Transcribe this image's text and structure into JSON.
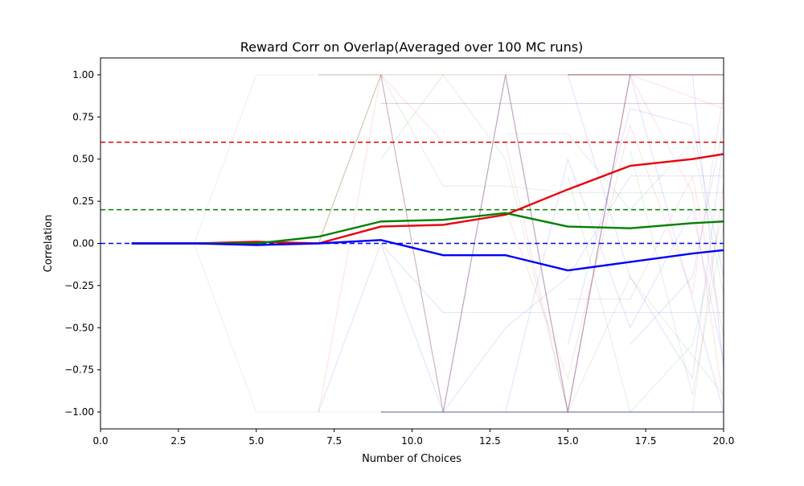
{
  "chart_data": {
    "type": "line",
    "title": "Reward Corr on Overlap(Averaged over 100 MC runs)",
    "xlabel": "Number of Choices",
    "ylabel": "Correlation",
    "xlim": [
      0,
      20
    ],
    "ylim": [
      -1.1,
      1.1
    ],
    "grid": false,
    "x_ticks": [
      0.0,
      2.5,
      5.0,
      7.5,
      10.0,
      12.5,
      15.0,
      17.5,
      20.0
    ],
    "x_tick_labels": [
      "0.0",
      "2.5",
      "5.0",
      "7.5",
      "10.0",
      "12.5",
      "15.0",
      "17.5",
      "20.0"
    ],
    "y_ticks": [
      -1.0,
      -0.75,
      -0.5,
      -0.25,
      0.0,
      0.25,
      0.5,
      0.75,
      1.0
    ],
    "y_tick_labels": [
      "−1.00",
      "−0.75",
      "−0.50",
      "−0.25",
      "0.00",
      "0.25",
      "0.50",
      "0.75",
      "1.00"
    ],
    "x": [
      1,
      3,
      5,
      7,
      9,
      11,
      13,
      15,
      17,
      19,
      20
    ],
    "series": [
      {
        "color": "#e8000b",
        "values": [
          0.0,
          0.0,
          0.01,
          0.0,
          0.1,
          0.11,
          0.17,
          0.32,
          0.46,
          0.5,
          0.53
        ]
      },
      {
        "color": "#008000",
        "values": [
          0.0,
          0.0,
          0.0,
          0.04,
          0.13,
          0.14,
          0.18,
          0.1,
          0.09,
          0.12,
          0.13
        ]
      },
      {
        "color": "#0000ff",
        "values": [
          0.0,
          0.0,
          -0.01,
          0.0,
          0.02,
          -0.07,
          -0.07,
          -0.16,
          -0.11,
          -0.06,
          -0.04
        ]
      }
    ],
    "reference_lines": [
      {
        "color": "#e8000b",
        "y": 0.6,
        "style": "dashed"
      },
      {
        "color": "#008000",
        "y": 0.2,
        "style": "dashed"
      },
      {
        "color": "#0000ff",
        "y": 0.0,
        "style": "dashed"
      }
    ],
    "background_runs": [
      {
        "color": "#bba07a",
        "opacity": 0.6,
        "points": [
          [
            7,
            1
          ],
          [
            9,
            1
          ],
          [
            9,
            1
          ]
        ]
      },
      {
        "color": "#bba07a",
        "opacity": 0.6,
        "points": [
          [
            7,
            0
          ],
          [
            9,
            1
          ]
        ]
      },
      {
        "color": "#9999cc",
        "opacity": 0.15,
        "points": [
          [
            3,
            0
          ],
          [
            5,
            1
          ],
          [
            9,
            1
          ]
        ]
      },
      {
        "color": "#9999cc",
        "opacity": 0.15,
        "points": [
          [
            3,
            0
          ],
          [
            5,
            -1
          ],
          [
            9,
            -1
          ]
        ]
      },
      {
        "color": "#008000",
        "opacity": 0.12,
        "points": [
          [
            9,
            1
          ],
          [
            11,
            1
          ],
          [
            13,
            1
          ],
          [
            15,
            1
          ],
          [
            17,
            1
          ],
          [
            20,
            1
          ]
        ]
      },
      {
        "color": "#008000",
        "opacity": 0.12,
        "points": [
          [
            9,
            0.5
          ],
          [
            11,
            1
          ]
        ]
      },
      {
        "color": "#008000",
        "opacity": 0.1,
        "points": [
          [
            9,
            1
          ],
          [
            11,
            0.34
          ],
          [
            13,
            0.34
          ],
          [
            15,
            0.3
          ],
          [
            20,
            0.3
          ]
        ]
      },
      {
        "color": "#0000ff",
        "opacity": 0.12,
        "points": [
          [
            9,
            -1
          ],
          [
            11,
            -1
          ],
          [
            13,
            -1
          ],
          [
            15,
            -1
          ],
          [
            17,
            -1
          ],
          [
            20,
            -1
          ]
        ]
      },
      {
        "color": "#0000ff",
        "opacity": 0.1,
        "points": [
          [
            9,
            0
          ],
          [
            11,
            -1
          ],
          [
            13,
            1
          ],
          [
            15,
            -1
          ],
          [
            17,
            1
          ],
          [
            20,
            -1
          ]
        ]
      },
      {
        "color": "#e8000b",
        "opacity": 0.1,
        "points": [
          [
            9,
            1
          ],
          [
            11,
            1
          ],
          [
            13,
            1
          ],
          [
            15,
            1
          ],
          [
            17,
            1
          ],
          [
            20,
            1
          ]
        ]
      },
      {
        "color": "#e8000b",
        "opacity": 0.1,
        "points": [
          [
            9,
            0.83
          ],
          [
            11,
            0.83
          ],
          [
            13,
            0.83
          ],
          [
            15,
            0.83
          ],
          [
            20,
            0.83
          ]
        ]
      },
      {
        "color": "#e8000b",
        "opacity": 0.1,
        "points": [
          [
            7,
            -1
          ],
          [
            9,
            1
          ],
          [
            11,
            0.6
          ],
          [
            13,
            0.6
          ],
          [
            15,
            -1
          ],
          [
            17,
            1
          ],
          [
            20,
            0.8
          ]
        ]
      },
      {
        "color": "#0000ff",
        "opacity": 0.1,
        "points": [
          [
            9,
            0.83
          ],
          [
            11,
            0.83
          ],
          [
            13,
            0.83
          ],
          [
            15,
            0.83
          ],
          [
            20,
            0.83
          ]
        ]
      },
      {
        "color": "#0000ff",
        "opacity": 0.1,
        "points": [
          [
            7,
            -1
          ],
          [
            9,
            0
          ],
          [
            11,
            -0.41
          ],
          [
            13,
            -0.41
          ],
          [
            15,
            -0.41
          ],
          [
            20,
            -0.41
          ]
        ]
      },
      {
        "color": "#0000ff",
        "opacity": 0.1,
        "points": [
          [
            11,
            -1
          ],
          [
            13,
            -0.5
          ],
          [
            15,
            -0.2
          ],
          [
            17,
            0.4
          ],
          [
            20,
            0.4
          ]
        ]
      },
      {
        "color": "#008000",
        "opacity": 0.1,
        "points": [
          [
            11,
            1
          ],
          [
            13,
            0.5
          ],
          [
            15,
            -1
          ],
          [
            17,
            -0.2
          ],
          [
            20,
            -0.9
          ]
        ]
      },
      {
        "color": "#0000ff",
        "opacity": 0.1,
        "points": [
          [
            13,
            -1
          ],
          [
            15,
            0.5
          ],
          [
            17,
            -0.5
          ],
          [
            19,
            0.2
          ],
          [
            20,
            -0.7
          ]
        ]
      },
      {
        "color": "#e8000b",
        "opacity": 0.1,
        "points": [
          [
            13,
            0.2
          ],
          [
            15,
            -0.8
          ],
          [
            17,
            0.7
          ],
          [
            19,
            -0.3
          ],
          [
            20,
            0.9
          ]
        ]
      },
      {
        "color": "#008000",
        "opacity": 0.1,
        "points": [
          [
            13,
            0.65
          ],
          [
            15,
            0.65
          ],
          [
            17,
            0.2
          ],
          [
            19,
            0.6
          ],
          [
            20,
            -0.3
          ]
        ]
      },
      {
        "color": "#0000ff",
        "opacity": 0.1,
        "points": [
          [
            15,
            1
          ],
          [
            17,
            -0.2
          ],
          [
            19,
            -0.8
          ],
          [
            20,
            0.6
          ]
        ]
      },
      {
        "color": "#e8000b",
        "opacity": 0.1,
        "points": [
          [
            15,
            -0.33
          ],
          [
            17,
            -0.33
          ],
          [
            19,
            0.4
          ],
          [
            20,
            -0.55
          ]
        ]
      },
      {
        "color": "#008000",
        "opacity": 0.1,
        "points": [
          [
            15,
            0.4
          ],
          [
            17,
            -1
          ],
          [
            19,
            -0.6
          ],
          [
            20,
            0.2
          ]
        ]
      },
      {
        "color": "#0000ff",
        "opacity": 0.1,
        "points": [
          [
            15,
            -0.6
          ],
          [
            17,
            0.8
          ],
          [
            19,
            0.7
          ],
          [
            20,
            -0.2
          ]
        ]
      },
      {
        "color": "#e8000b",
        "opacity": 0.1,
        "points": [
          [
            17,
            1
          ],
          [
            19,
            0.3
          ],
          [
            20,
            -0.95
          ]
        ]
      },
      {
        "color": "#0000ff",
        "opacity": 0.1,
        "points": [
          [
            17,
            -0.6
          ],
          [
            19,
            -0.2
          ],
          [
            20,
            0.7
          ]
        ]
      },
      {
        "color": "#008000",
        "opacity": 0.1,
        "points": [
          [
            17,
            0.55
          ],
          [
            19,
            -0.9
          ],
          [
            20,
            0.1
          ]
        ]
      },
      {
        "color": "#0000ff",
        "opacity": 0.1,
        "points": [
          [
            19,
            1
          ],
          [
            20,
            -0.75
          ]
        ]
      },
      {
        "color": "#e8000b",
        "opacity": 0.1,
        "points": [
          [
            19,
            -1
          ],
          [
            20,
            0.35
          ]
        ]
      },
      {
        "color": "#000066",
        "opacity": 0.5,
        "points": [
          [
            9,
            -1
          ],
          [
            11,
            -1
          ],
          [
            13,
            -1
          ],
          [
            15,
            -1
          ],
          [
            17,
            -1
          ],
          [
            20,
            -1
          ]
        ]
      },
      {
        "color": "#660000",
        "opacity": 0.5,
        "points": [
          [
            15,
            1
          ],
          [
            17,
            1
          ],
          [
            20,
            1
          ]
        ]
      },
      {
        "color": "#884466",
        "opacity": 0.4,
        "points": [
          [
            9,
            1
          ],
          [
            11,
            -1
          ],
          [
            13,
            1
          ],
          [
            15,
            -1
          ],
          [
            17,
            1
          ]
        ]
      }
    ]
  }
}
